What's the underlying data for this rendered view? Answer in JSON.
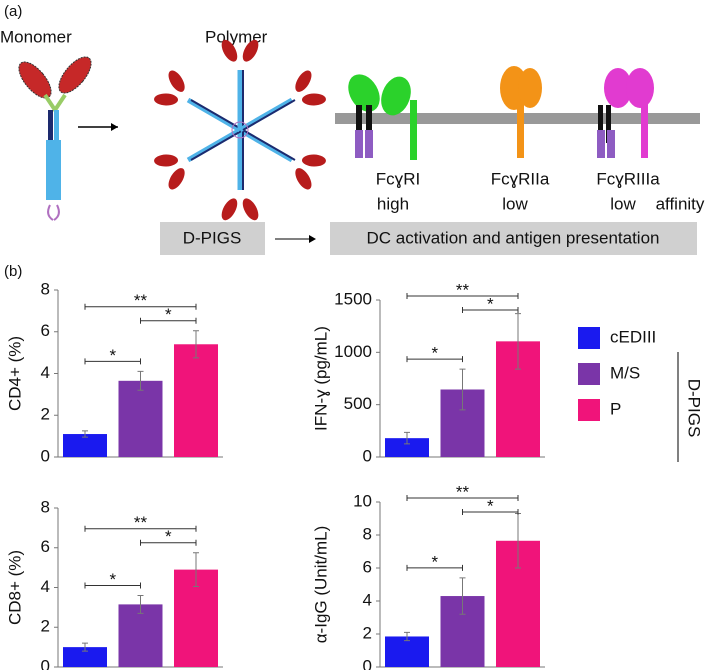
{
  "diagram": {
    "panel_a": "(a)",
    "panel_b": "(b)",
    "monomer": "Monomer",
    "polymer": "Polymer",
    "receptors": [
      "FcɣRI",
      "FcɣRIIa",
      "FcɣRIIIa"
    ],
    "affinities": [
      "high",
      "low",
      "low"
    ],
    "affinity_label": "affinity",
    "box_left": "D-PIGS",
    "box_right": "DC activation and antigen presentation"
  },
  "legend": {
    "items": [
      {
        "name": "cEDIII",
        "color": "#1a1aef"
      },
      {
        "name": "M/S",
        "color": "#7a35a8"
      },
      {
        "name": "P",
        "color": "#f0147a"
      }
    ],
    "group_label": "D-PIGS"
  },
  "chart_data": [
    {
      "type": "bar",
      "y_label": "CD4+ (%)",
      "values": [
        1.1,
        3.65,
        5.4
      ],
      "errors": [
        0.15,
        0.45,
        0.65
      ],
      "ylim": [
        0,
        8
      ],
      "yticks": [
        0,
        2,
        4,
        6,
        8
      ],
      "brackets": [
        {
          "from": 0,
          "to": 1,
          "label": "*"
        },
        {
          "from": 1,
          "to": 2,
          "label": "*"
        },
        {
          "from": 0,
          "to": 2,
          "label": "**"
        }
      ]
    },
    {
      "type": "bar",
      "y_label": "IFN-ɣ (pg/mL)",
      "values": [
        180,
        645,
        1105
      ],
      "errors": [
        55,
        195,
        265
      ],
      "ylim": [
        0,
        1500
      ],
      "yticks": [
        0,
        500,
        1000,
        1500
      ],
      "brackets": [
        {
          "from": 0,
          "to": 1,
          "label": "*"
        },
        {
          "from": 1,
          "to": 2,
          "label": "*"
        },
        {
          "from": 0,
          "to": 2,
          "label": "**"
        }
      ]
    },
    {
      "type": "bar",
      "y_label": "CD8+ (%)",
      "values": [
        1.0,
        3.15,
        4.9
      ],
      "errors": [
        0.2,
        0.45,
        0.85
      ],
      "ylim": [
        0,
        8
      ],
      "yticks": [
        0,
        2,
        4,
        6,
        8
      ],
      "brackets": [
        {
          "from": 0,
          "to": 1,
          "label": "*"
        },
        {
          "from": 1,
          "to": 2,
          "label": "*"
        },
        {
          "from": 0,
          "to": 2,
          "label": "**"
        }
      ]
    },
    {
      "type": "bar",
      "y_label": "α-IgG (Unit/mL)",
      "values": [
        1.85,
        4.3,
        7.65
      ],
      "errors": [
        0.25,
        1.1,
        1.65
      ],
      "ylim": [
        0,
        10
      ],
      "yticks": [
        0,
        2,
        4,
        6,
        8,
        10
      ],
      "brackets": [
        {
          "from": 0,
          "to": 1,
          "label": "*"
        },
        {
          "from": 1,
          "to": 2,
          "label": "*"
        },
        {
          "from": 0,
          "to": 2,
          "label": "**"
        }
      ]
    }
  ]
}
